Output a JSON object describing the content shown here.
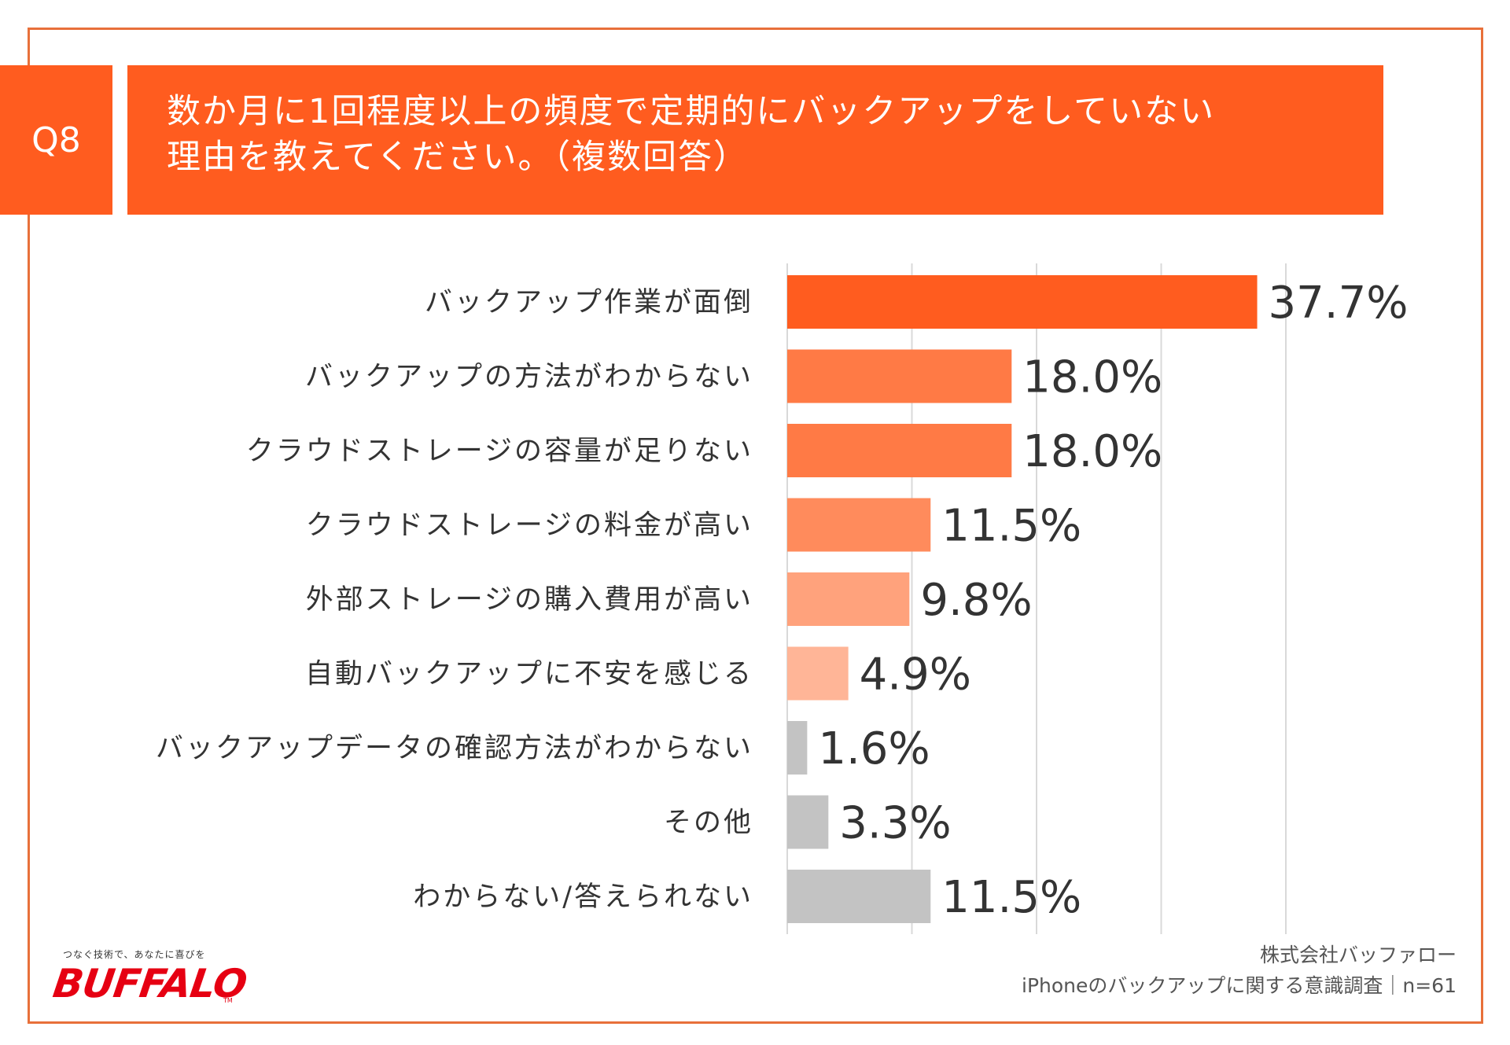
{
  "question": {
    "badge": "Q8",
    "title_line1": "数か月に1回程度以上の頻度で定期的にバックアップをしていない",
    "title_line2": "理由を教えてください。（複数回答）"
  },
  "chart_data": {
    "type": "bar",
    "orientation": "horizontal",
    "title": "数か月に1回程度以上の頻度で定期的にバックアップをしていない理由を教えてください。（複数回答）",
    "categories": [
      "バックアップ作業が面倒",
      "バックアップの方法がわからない",
      "クラウドストレージの容量が足りない",
      "クラウドストレージの料金が高い",
      "外部ストレージの購入費用が高い",
      "自動バックアップに不安を感じる",
      "バックアップデータの確認方法がわからない",
      "その他",
      "わからない/答えられない"
    ],
    "values": [
      37.7,
      18.0,
      18.0,
      11.5,
      9.8,
      4.9,
      1.6,
      3.3,
      11.5
    ],
    "value_labels": [
      "37.7%",
      "18.0%",
      "18.0%",
      "11.5%",
      "9.8%",
      "4.9%",
      "1.6%",
      "3.3%",
      "11.5%"
    ],
    "colors": [
      "#ff5c1f",
      "#ff7a45",
      "#ff7a45",
      "#ff8b5c",
      "#ffa27c",
      "#ffb597",
      "#c3c3c3",
      "#c3c3c3",
      "#c3c3c3"
    ],
    "xlim": [
      0,
      50
    ],
    "gridlines": [
      0,
      10,
      20,
      30,
      40
    ],
    "grid": true,
    "unit": "%"
  },
  "footer": {
    "company": "株式会社バッファロー",
    "survey": "iPhoneのバックアップに関する意識調査｜n=61"
  },
  "logo": {
    "tagline": "つなぐ技術で、あなたに喜びを",
    "wordmark": "BUFFALO",
    "tm": "TM"
  }
}
